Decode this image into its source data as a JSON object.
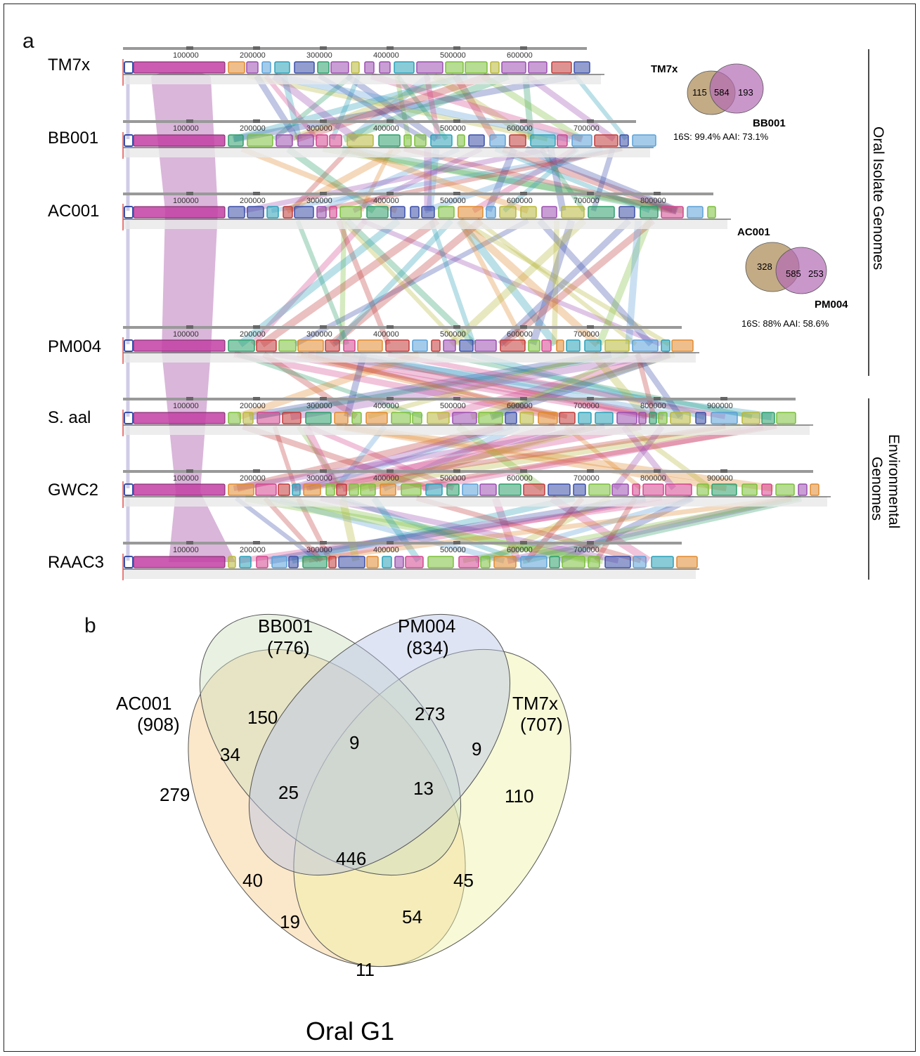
{
  "panel_a": {
    "label": "a",
    "genomes": [
      {
        "name": "TM7x",
        "ticks": [
          "100000",
          "200000",
          "300000",
          "400000",
          "500000",
          "600000"
        ],
        "group": "oral"
      },
      {
        "name": "BB001",
        "ticks": [
          "100000",
          "200000",
          "300000",
          "400000",
          "500000",
          "600000",
          "700000"
        ],
        "group": "oral"
      },
      {
        "name": "AC001",
        "ticks": [
          "100000",
          "200000",
          "300000",
          "400000",
          "500000",
          "600000",
          "700000",
          "800000"
        ],
        "group": "oral"
      },
      {
        "name": "PM004",
        "ticks": [
          "100000",
          "200000",
          "300000",
          "400000",
          "500000",
          "600000",
          "700000"
        ],
        "group": "oral"
      },
      {
        "name": "S. aal",
        "ticks": [
          "100000",
          "200000",
          "300000",
          "400000",
          "500000",
          "600000",
          "700000",
          "800000",
          "900000"
        ],
        "group": "environmental"
      },
      {
        "name": "GWC2",
        "ticks": [
          "100000",
          "200000",
          "300000",
          "400000",
          "500000",
          "600000",
          "700000",
          "800000",
          "900000"
        ],
        "group": "environmental"
      },
      {
        "name": "RAAC3",
        "ticks": [
          "100000",
          "200000",
          "300000",
          "400000",
          "500000",
          "600000",
          "700000"
        ],
        "group": "environmental"
      }
    ],
    "groups": {
      "oral": "Oral Isolate Genomes",
      "environmental_line1": "Environmental",
      "environmental_line2": "Genomes"
    },
    "venn_tm7x_bb001": {
      "left_name": "TM7x",
      "right_name": "BB001",
      "left_only": "115",
      "shared": "584",
      "right_only": "193",
      "stats": "16S: 99.4%  AAI: 73.1%"
    },
    "venn_ac001_pm004": {
      "left_name": "AC001",
      "right_name": "PM004",
      "left_only": "328",
      "shared": "585",
      "right_only": "253",
      "stats": "16S: 88%  AAI: 58.6%"
    }
  },
  "panel_b": {
    "label": "b",
    "title": "Oral G1",
    "sets": [
      {
        "name": "AC001",
        "count": "(908)",
        "color": "#f6c98a"
      },
      {
        "name": "BB001",
        "count": "(776)",
        "color": "#cfe0c0"
      },
      {
        "name": "PM004",
        "count": "(834)",
        "color": "#b9c3e6"
      },
      {
        "name": "TM7x",
        "count": "(707)",
        "color": "#eef2a6"
      }
    ],
    "regions": {
      "ac_only": "279",
      "bb_only": "150",
      "pm_only": "273",
      "tm_only": "110",
      "ac_bb": "34",
      "bb_pm": "9",
      "pm_tm": "9",
      "ac_tm": "11",
      "ac_bb_pm": "25",
      "bb_pm_tm": "13",
      "ac_bb_tm": "40",
      "ac_pm_tm": "45",
      "ac_pm_tm_lower": "54",
      "ac_bb_tm_lower": "19",
      "all": "446"
    }
  },
  "colors": {
    "synteny_purple": "#c68fc6",
    "axis_gray": "#888888",
    "frame": "#222222"
  }
}
